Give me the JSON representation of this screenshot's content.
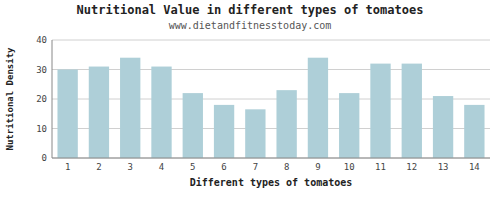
{
  "chart_data": {
    "type": "bar",
    "title": "Nutritional Value in different types of tomatoes",
    "subtitle": "www.dietandfitnesstoday.com",
    "xlabel": "Different types of tomatoes",
    "ylabel": "Nutritional Density",
    "categories": [
      1,
      2,
      3,
      4,
      5,
      6,
      7,
      8,
      9,
      10,
      11,
      12,
      13,
      14
    ],
    "values": [
      30.0,
      31.0,
      34.0,
      31.0,
      22.0,
      18.0,
      16.5,
      23.0,
      34.0,
      22.0,
      32.0,
      32.0,
      21.0,
      18.0
    ],
    "color": "#aecfd8",
    "ylim": [
      0,
      40
    ],
    "yticks": [
      0,
      10,
      20,
      30,
      40
    ],
    "grid": true
  }
}
